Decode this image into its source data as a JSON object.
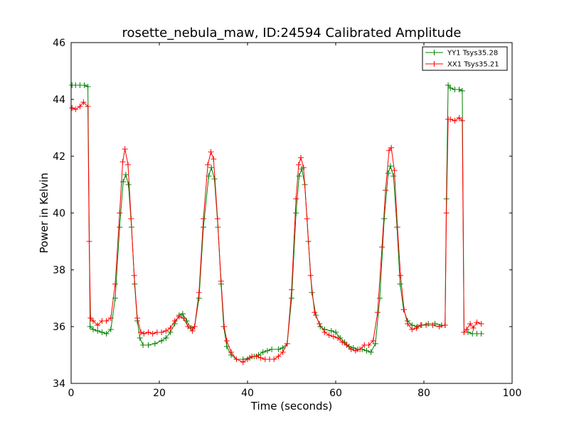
{
  "chart_data": {
    "type": "line",
    "title": "rosette_nebula_maw, ID:24594 Calibrated Amplitude",
    "xlabel": "Time (seconds)",
    "ylabel": "Power in Kelvin",
    "xlim": [
      0,
      100
    ],
    "ylim": [
      34,
      46
    ],
    "xticks": [
      0,
      20,
      40,
      60,
      80,
      100
    ],
    "yticks": [
      34,
      36,
      38,
      40,
      42,
      44,
      46
    ],
    "grid": false,
    "legend_position": "top-right",
    "marker": "+",
    "series": [
      {
        "name": "YY1 Tsys35.28",
        "color": "#008000",
        "points": [
          [
            0.2,
            44.5
          ],
          [
            1.0,
            44.5
          ],
          [
            2.0,
            44.5
          ],
          [
            3.0,
            44.5
          ],
          [
            3.8,
            44.45
          ],
          [
            4.3,
            36.0
          ],
          [
            5.0,
            35.9
          ],
          [
            6.0,
            35.85
          ],
          [
            7.0,
            35.8
          ],
          [
            8.0,
            35.75
          ],
          [
            9.0,
            35.9
          ],
          [
            10.0,
            37.0
          ],
          [
            11.0,
            39.5
          ],
          [
            11.8,
            41.1
          ],
          [
            12.4,
            41.35
          ],
          [
            13.0,
            41.0
          ],
          [
            13.7,
            39.5
          ],
          [
            14.4,
            37.5
          ],
          [
            15.0,
            36.2
          ],
          [
            15.6,
            35.6
          ],
          [
            16.3,
            35.35
          ],
          [
            17.5,
            35.35
          ],
          [
            19.0,
            35.4
          ],
          [
            20.5,
            35.5
          ],
          [
            21.5,
            35.6
          ],
          [
            22.5,
            35.8
          ],
          [
            23.5,
            36.1
          ],
          [
            24.5,
            36.4
          ],
          [
            25.3,
            36.45
          ],
          [
            26.2,
            36.2
          ],
          [
            27.2,
            35.95
          ],
          [
            28.0,
            36.0
          ],
          [
            29.0,
            37.0
          ],
          [
            30.0,
            39.5
          ],
          [
            31.2,
            41.3
          ],
          [
            31.8,
            41.6
          ],
          [
            32.5,
            41.2
          ],
          [
            33.3,
            39.5
          ],
          [
            34.0,
            37.5
          ],
          [
            34.6,
            36.0
          ],
          [
            35.3,
            35.3
          ],
          [
            36.3,
            35.0
          ],
          [
            37.5,
            34.85
          ],
          [
            39.0,
            34.85
          ],
          [
            40.5,
            34.9
          ],
          [
            41.5,
            34.95
          ],
          [
            42.5,
            35.0
          ],
          [
            43.5,
            35.1
          ],
          [
            44.5,
            35.15
          ],
          [
            45.5,
            35.2
          ],
          [
            47.0,
            35.2
          ],
          [
            48.0,
            35.25
          ],
          [
            49.0,
            35.4
          ],
          [
            50.0,
            37.0
          ],
          [
            51.0,
            40.0
          ],
          [
            51.7,
            41.3
          ],
          [
            52.3,
            41.55
          ],
          [
            53.0,
            41.0
          ],
          [
            53.8,
            39.0
          ],
          [
            54.6,
            37.2
          ],
          [
            55.5,
            36.4
          ],
          [
            56.5,
            36.0
          ],
          [
            57.5,
            35.9
          ],
          [
            59.0,
            35.85
          ],
          [
            60.0,
            35.8
          ],
          [
            61.0,
            35.6
          ],
          [
            62.0,
            35.45
          ],
          [
            63.0,
            35.3
          ],
          [
            64.0,
            35.25
          ],
          [
            65.0,
            35.2
          ],
          [
            66.0,
            35.2
          ],
          [
            67.0,
            35.15
          ],
          [
            68.0,
            35.1
          ],
          [
            69.0,
            35.4
          ],
          [
            70.0,
            37.0
          ],
          [
            71.0,
            39.8
          ],
          [
            71.9,
            41.4
          ],
          [
            72.4,
            41.65
          ],
          [
            73.1,
            41.3
          ],
          [
            73.9,
            39.5
          ],
          [
            74.6,
            37.5
          ],
          [
            75.4,
            36.6
          ],
          [
            76.3,
            36.2
          ],
          [
            77.3,
            36.05
          ],
          [
            78.5,
            36.0
          ],
          [
            79.5,
            36.05
          ],
          [
            81.0,
            36.1
          ],
          [
            82.5,
            36.1
          ],
          [
            84.0,
            36.05
          ],
          [
            84.8,
            36.05
          ],
          [
            85.1,
            40.5
          ],
          [
            85.5,
            44.5
          ],
          [
            86.0,
            44.4
          ],
          [
            87.0,
            44.35
          ],
          [
            88.0,
            44.35
          ],
          [
            88.7,
            44.3
          ],
          [
            89.1,
            35.8
          ],
          [
            90.0,
            35.8
          ],
          [
            91.0,
            35.75
          ],
          [
            92.0,
            35.75
          ],
          [
            93.0,
            35.75
          ]
        ]
      },
      {
        "name": "XX1 Tsys35.21",
        "color": "#ff0000",
        "points": [
          [
            0.2,
            43.7
          ],
          [
            1.0,
            43.65
          ],
          [
            2.0,
            43.75
          ],
          [
            2.8,
            43.9
          ],
          [
            3.8,
            43.75
          ],
          [
            4.1,
            39.0
          ],
          [
            4.4,
            36.3
          ],
          [
            5.0,
            36.2
          ],
          [
            6.0,
            36.05
          ],
          [
            7.0,
            36.2
          ],
          [
            8.0,
            36.2
          ],
          [
            9.0,
            36.3
          ],
          [
            10.0,
            37.5
          ],
          [
            11.0,
            40.0
          ],
          [
            11.7,
            41.8
          ],
          [
            12.2,
            42.25
          ],
          [
            12.9,
            41.7
          ],
          [
            13.6,
            39.8
          ],
          [
            14.3,
            37.8
          ],
          [
            15.0,
            36.3
          ],
          [
            15.8,
            35.8
          ],
          [
            16.5,
            35.75
          ],
          [
            17.5,
            35.8
          ],
          [
            18.5,
            35.75
          ],
          [
            19.5,
            35.8
          ],
          [
            20.5,
            35.8
          ],
          [
            21.5,
            35.85
          ],
          [
            22.5,
            35.95
          ],
          [
            23.5,
            36.2
          ],
          [
            24.5,
            36.35
          ],
          [
            25.5,
            36.3
          ],
          [
            26.5,
            36.0
          ],
          [
            27.5,
            35.85
          ],
          [
            28.0,
            36.0
          ],
          [
            29.0,
            37.2
          ],
          [
            30.0,
            39.8
          ],
          [
            31.0,
            41.7
          ],
          [
            31.7,
            42.15
          ],
          [
            32.3,
            41.9
          ],
          [
            33.2,
            39.8
          ],
          [
            34.0,
            37.6
          ],
          [
            34.7,
            36.0
          ],
          [
            35.3,
            35.5
          ],
          [
            36.3,
            35.1
          ],
          [
            37.5,
            34.85
          ],
          [
            39.0,
            34.75
          ],
          [
            40.0,
            34.85
          ],
          [
            41.0,
            34.95
          ],
          [
            42.0,
            34.95
          ],
          [
            43.0,
            34.9
          ],
          [
            44.0,
            34.85
          ],
          [
            45.0,
            34.85
          ],
          [
            46.0,
            34.85
          ],
          [
            47.0,
            34.95
          ],
          [
            48.0,
            35.1
          ],
          [
            49.0,
            35.4
          ],
          [
            50.0,
            37.3
          ],
          [
            51.0,
            40.5
          ],
          [
            51.6,
            41.7
          ],
          [
            52.1,
            41.95
          ],
          [
            52.7,
            41.6
          ],
          [
            53.5,
            39.8
          ],
          [
            54.3,
            37.8
          ],
          [
            55.2,
            36.5
          ],
          [
            56.3,
            36.1
          ],
          [
            57.5,
            35.8
          ],
          [
            58.5,
            35.7
          ],
          [
            59.5,
            35.65
          ],
          [
            60.5,
            35.6
          ],
          [
            61.5,
            35.45
          ],
          [
            62.5,
            35.35
          ],
          [
            63.5,
            35.2
          ],
          [
            64.5,
            35.15
          ],
          [
            65.5,
            35.2
          ],
          [
            66.5,
            35.35
          ],
          [
            67.5,
            35.35
          ],
          [
            68.5,
            35.5
          ],
          [
            69.5,
            36.5
          ],
          [
            70.5,
            38.8
          ],
          [
            71.3,
            40.8
          ],
          [
            72.1,
            42.2
          ],
          [
            72.6,
            42.3
          ],
          [
            73.3,
            41.5
          ],
          [
            74.0,
            39.5
          ],
          [
            74.7,
            37.8
          ],
          [
            75.5,
            36.6
          ],
          [
            76.3,
            36.1
          ],
          [
            77.3,
            35.9
          ],
          [
            78.3,
            35.95
          ],
          [
            79.3,
            36.05
          ],
          [
            80.5,
            36.05
          ],
          [
            82.0,
            36.05
          ],
          [
            83.5,
            36.0
          ],
          [
            84.8,
            36.05
          ],
          [
            85.1,
            40.0
          ],
          [
            85.5,
            43.3
          ],
          [
            86.0,
            43.3
          ],
          [
            87.0,
            43.25
          ],
          [
            88.0,
            43.35
          ],
          [
            88.7,
            43.25
          ],
          [
            89.1,
            35.8
          ],
          [
            89.7,
            35.9
          ],
          [
            90.5,
            36.1
          ],
          [
            91.2,
            35.95
          ],
          [
            92.0,
            36.15
          ],
          [
            93.0,
            36.1
          ]
        ]
      }
    ]
  }
}
